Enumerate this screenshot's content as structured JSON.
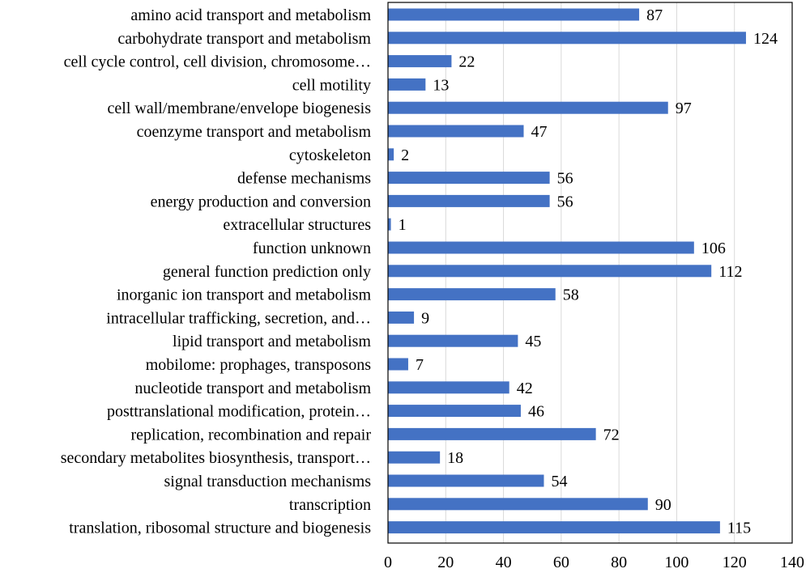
{
  "chart_data": {
    "type": "bar",
    "orientation": "horizontal",
    "title": "",
    "xlabel": "",
    "ylabel": "",
    "xlim": [
      0,
      140
    ],
    "x_ticks": [
      0,
      20,
      40,
      60,
      80,
      100,
      120,
      140
    ],
    "grid": true,
    "bar_color": "#4472c4",
    "categories": [
      "amino acid transport and metabolism",
      "carbohydrate transport and metabolism",
      "cell cycle control, cell division, chromosome…",
      "cell motility",
      "cell wall/membrane/envelope biogenesis",
      "coenzyme transport and metabolism",
      "cytoskeleton",
      "defense mechanisms",
      "energy production and conversion",
      "extracellular structures",
      "function unknown",
      "general function prediction only",
      "inorganic ion transport and metabolism",
      "intracellular trafficking, secretion, and…",
      "lipid transport and metabolism",
      "mobilome: prophages, transposons",
      "nucleotide transport and metabolism",
      "posttranslational modification, protein…",
      "replication, recombination and repair",
      "secondary metabolites biosynthesis, transport…",
      "signal transduction mechanisms",
      "transcription",
      "translation, ribosomal structure and biogenesis"
    ],
    "values": [
      87,
      124,
      22,
      13,
      97,
      47,
      2,
      56,
      56,
      1,
      106,
      112,
      58,
      9,
      45,
      7,
      42,
      46,
      72,
      18,
      54,
      90,
      115
    ]
  }
}
